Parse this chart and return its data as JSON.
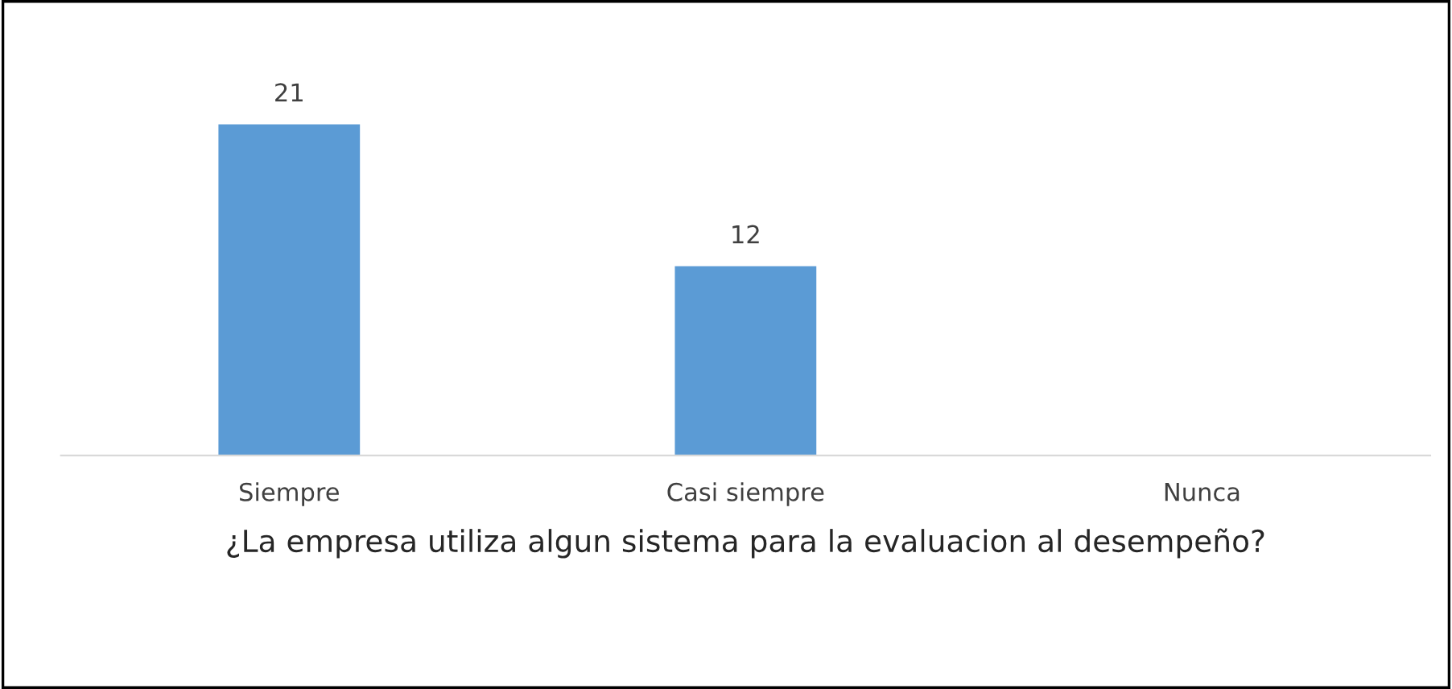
{
  "chart_data": {
    "type": "bar",
    "xlabel": "¿La empresa utiliza algun sistema para la evaluacion al desempeño?",
    "categories": [
      "Siempre",
      "Casi siempre",
      "Nunca"
    ],
    "series": [
      {
        "color": "#5b9bd5",
        "values": [
          21,
          12,
          0
        ],
        "value_labels": [
          "21",
          "12",
          null
        ]
      }
    ]
  }
}
